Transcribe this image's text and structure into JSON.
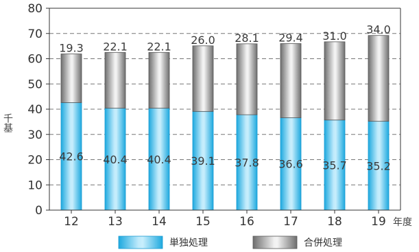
{
  "chart_data": {
    "type": "bar",
    "stacked": true,
    "categories": [
      "12",
      "13",
      "14",
      "15",
      "16",
      "17",
      "18",
      "19"
    ],
    "x_unit": "年度",
    "y_unit": "千基",
    "ylim": [
      0,
      80
    ],
    "yticks": [
      0,
      10,
      20,
      30,
      40,
      50,
      60,
      70,
      80
    ],
    "grid": true,
    "legend_position": "bottom",
    "series": [
      {
        "name": "単独処理",
        "values": [
          42.6,
          40.4,
          40.4,
          39.1,
          37.8,
          36.6,
          35.7,
          35.2
        ],
        "color": "#29b6e8"
      },
      {
        "name": "合併処理",
        "values": [
          19.3,
          22.1,
          22.1,
          26.0,
          28.1,
          29.4,
          31.0,
          34.0
        ],
        "color": "#8a8a8a"
      }
    ]
  }
}
